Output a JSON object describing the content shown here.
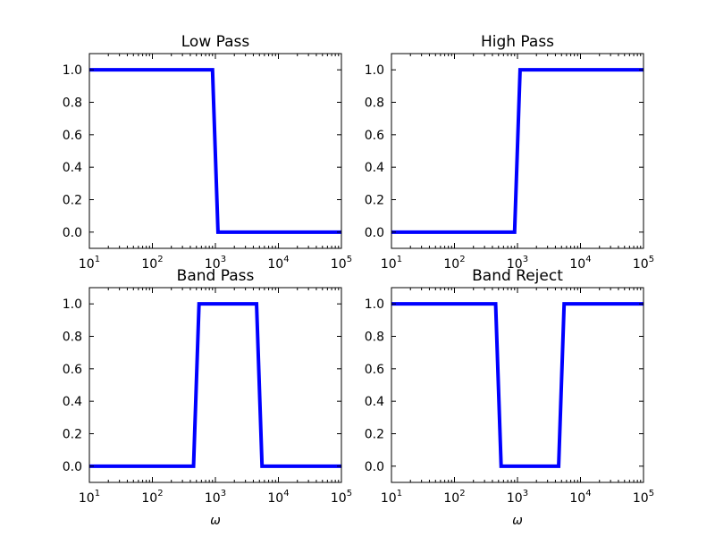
{
  "chart_data": [
    {
      "type": "line",
      "title": "Low Pass",
      "xscale": "log",
      "xlim": [
        10,
        100000
      ],
      "ylim": [
        -0.1,
        1.1
      ],
      "xticks": [
        10,
        100,
        1000,
        10000,
        100000
      ],
      "xtick_labels": [
        {
          "base": "10",
          "exp": "1"
        },
        {
          "base": "10",
          "exp": "2"
        },
        {
          "base": "10",
          "exp": "3"
        },
        {
          "base": "10",
          "exp": "4"
        },
        {
          "base": "10",
          "exp": "5"
        }
      ],
      "yticks": [
        0.0,
        0.2,
        0.4,
        0.6,
        0.8,
        1.0
      ],
      "ytick_labels": [
        "0.0",
        "0.2",
        "0.4",
        "0.6",
        "0.8",
        "1.0"
      ],
      "xlabel": "",
      "series": [
        {
          "color": "#0000ff",
          "x": [
            10,
            900,
            1100,
            100000
          ],
          "y": [
            1.0,
            1.0,
            0.0,
            0.0
          ]
        }
      ]
    },
    {
      "type": "line",
      "title": "High Pass",
      "xscale": "log",
      "xlim": [
        10,
        100000
      ],
      "ylim": [
        -0.1,
        1.1
      ],
      "xticks": [
        10,
        100,
        1000,
        10000,
        100000
      ],
      "xtick_labels": [
        {
          "base": "10",
          "exp": "1"
        },
        {
          "base": "10",
          "exp": "2"
        },
        {
          "base": "10",
          "exp": "3"
        },
        {
          "base": "10",
          "exp": "4"
        },
        {
          "base": "10",
          "exp": "5"
        }
      ],
      "yticks": [
        0.0,
        0.2,
        0.4,
        0.6,
        0.8,
        1.0
      ],
      "ytick_labels": [
        "0.0",
        "0.2",
        "0.4",
        "0.6",
        "0.8",
        "1.0"
      ],
      "xlabel": "",
      "series": [
        {
          "color": "#0000ff",
          "x": [
            10,
            900,
            1100,
            100000
          ],
          "y": [
            0.0,
            0.0,
            1.0,
            1.0
          ]
        }
      ]
    },
    {
      "type": "line",
      "title": "Band Pass",
      "xscale": "log",
      "xlim": [
        10,
        100000
      ],
      "ylim": [
        -0.1,
        1.1
      ],
      "xticks": [
        10,
        100,
        1000,
        10000,
        100000
      ],
      "xtick_labels": [
        {
          "base": "10",
          "exp": "1"
        },
        {
          "base": "10",
          "exp": "2"
        },
        {
          "base": "10",
          "exp": "3"
        },
        {
          "base": "10",
          "exp": "4"
        },
        {
          "base": "10",
          "exp": "5"
        }
      ],
      "yticks": [
        0.0,
        0.2,
        0.4,
        0.6,
        0.8,
        1.0
      ],
      "ytick_labels": [
        "0.0",
        "0.2",
        "0.4",
        "0.6",
        "0.8",
        "1.0"
      ],
      "xlabel": "ω",
      "series": [
        {
          "color": "#0000ff",
          "x": [
            10,
            450,
            550,
            4500,
            5500,
            100000
          ],
          "y": [
            0.0,
            0.0,
            1.0,
            1.0,
            0.0,
            0.0
          ]
        }
      ]
    },
    {
      "type": "line",
      "title": "Band Reject",
      "xscale": "log",
      "xlim": [
        10,
        100000
      ],
      "ylim": [
        -0.1,
        1.1
      ],
      "xticks": [
        10,
        100,
        1000,
        10000,
        100000
      ],
      "xtick_labels": [
        {
          "base": "10",
          "exp": "1"
        },
        {
          "base": "10",
          "exp": "2"
        },
        {
          "base": "10",
          "exp": "3"
        },
        {
          "base": "10",
          "exp": "4"
        },
        {
          "base": "10",
          "exp": "5"
        }
      ],
      "yticks": [
        0.0,
        0.2,
        0.4,
        0.6,
        0.8,
        1.0
      ],
      "ytick_labels": [
        "0.0",
        "0.2",
        "0.4",
        "0.6",
        "0.8",
        "1.0"
      ],
      "xlabel": "ω",
      "series": [
        {
          "color": "#0000ff",
          "x": [
            10,
            450,
            550,
            4500,
            5500,
            100000
          ],
          "y": [
            1.0,
            1.0,
            0.0,
            0.0,
            1.0,
            1.0
          ]
        }
      ]
    }
  ]
}
